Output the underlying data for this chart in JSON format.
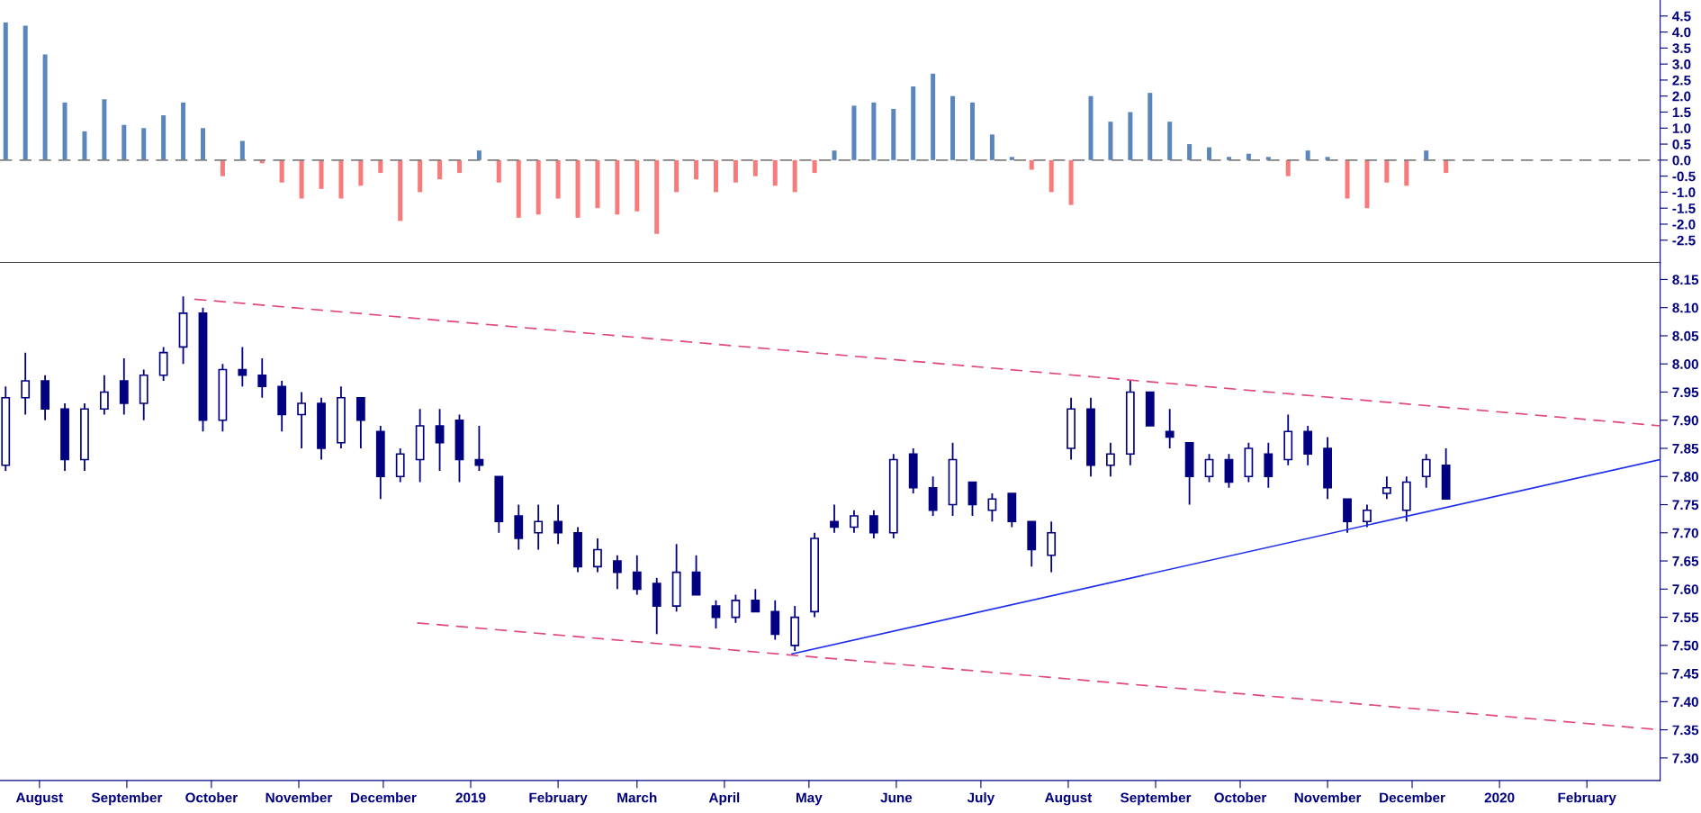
{
  "chart_data": [
    {
      "type": "bar",
      "x": [
        "2018-07-20",
        "2018-07-27",
        "2018-08-03",
        "2018-08-10",
        "2018-08-17",
        "2018-08-24",
        "2018-08-31",
        "2018-09-07",
        "2018-09-14",
        "2018-09-21",
        "2018-09-28",
        "2018-10-05",
        "2018-10-12",
        "2018-10-19",
        "2018-10-26",
        "2018-11-02",
        "2018-11-09",
        "2018-11-16",
        "2018-11-23",
        "2018-11-30",
        "2018-12-07",
        "2018-12-14",
        "2018-12-21",
        "2018-12-28",
        "2019-01-04",
        "2019-01-11",
        "2019-01-18",
        "2019-01-25",
        "2019-02-01",
        "2019-02-08",
        "2019-02-15",
        "2019-02-22",
        "2019-03-01",
        "2019-03-08",
        "2019-03-15",
        "2019-03-22",
        "2019-03-29",
        "2019-04-05",
        "2019-04-12",
        "2019-04-19",
        "2019-04-26",
        "2019-05-03",
        "2019-05-10",
        "2019-05-17",
        "2019-05-24",
        "2019-05-31",
        "2019-06-07",
        "2019-06-14",
        "2019-06-21",
        "2019-06-28",
        "2019-07-05",
        "2019-07-12",
        "2019-07-19",
        "2019-07-26",
        "2019-08-02",
        "2019-08-09",
        "2019-08-16",
        "2019-08-23",
        "2019-08-30",
        "2019-09-06",
        "2019-09-13",
        "2019-09-20",
        "2019-09-27",
        "2019-10-04",
        "2019-10-11",
        "2019-10-18",
        "2019-10-25",
        "2019-11-01",
        "2019-11-08",
        "2019-11-15",
        "2019-11-22",
        "2019-11-29",
        "2019-12-06",
        "2019-12-13"
      ],
      "series": [
        {
          "color": "#5b86bd",
          "values": [
            4.3,
            4.2,
            3.3,
            1.8,
            0.9,
            1.9,
            1.1,
            1.0,
            1.4,
            1.8,
            1.0,
            null,
            0.6,
            null,
            null,
            null,
            null,
            null,
            null,
            null,
            null,
            null,
            null,
            null,
            0.3,
            null,
            null,
            null,
            null,
            null,
            null,
            null,
            null,
            null,
            null,
            null,
            null,
            null,
            null,
            null,
            null,
            null,
            0.3,
            1.7,
            1.8,
            1.6,
            2.3,
            2.7,
            2.0,
            1.8,
            0.8,
            0.1,
            null,
            null,
            null,
            2.0,
            1.2,
            1.5,
            2.1,
            1.2,
            0.5,
            0.4,
            0.1,
            0.2,
            0.1,
            null,
            0.3,
            0.1,
            null,
            null,
            null,
            null,
            0.3,
            null
          ]
        },
        {
          "color": "#f77b7b",
          "values": [
            null,
            null,
            null,
            null,
            null,
            null,
            null,
            null,
            null,
            null,
            null,
            -0.5,
            null,
            -0.1,
            -0.7,
            -1.2,
            -0.9,
            -1.2,
            -0.8,
            -0.4,
            -1.9,
            -1.0,
            -0.6,
            -0.4,
            null,
            -0.7,
            -1.8,
            -1.7,
            -1.2,
            -1.8,
            -1.5,
            -1.7,
            -1.6,
            -2.3,
            -1.0,
            -0.6,
            -1.0,
            -0.7,
            -0.5,
            -0.8,
            -1.0,
            -0.4,
            null,
            null,
            null,
            null,
            null,
            null,
            null,
            null,
            null,
            null,
            -0.3,
            -1.0,
            -1.4,
            null,
            null,
            null,
            null,
            null,
            null,
            null,
            null,
            null,
            null,
            -0.5,
            null,
            null,
            -1.2,
            -1.5,
            -0.7,
            -0.8,
            null,
            -0.4
          ]
        }
      ],
      "xlim": [
        "2018-07-18",
        "2020-02-27"
      ],
      "ylim": [
        -3.2,
        5.0
      ],
      "yticks": [
        -2.5,
        {
          "value": -2,
          "label": "-2.0"
        },
        -1.5,
        {
          "value": -1,
          "label": "-1.0"
        },
        -0.5,
        {
          "value": 0,
          "label": "0.0"
        },
        0.5,
        {
          "value": 1,
          "label": "1.0"
        },
        1.5,
        {
          "value": 2,
          "label": "2.0"
        },
        2.5,
        {
          "value": 3,
          "label": "3.0"
        },
        3.5,
        {
          "value": 4,
          "label": "4.0"
        },
        4.5
      ],
      "ref_lines": [
        {
          "axis": "y",
          "value": 0,
          "color": "#808080",
          "line_style": "dashed"
        }
      ],
      "tick_labels": "y"
    },
    {
      "type": "candlestick",
      "color": "#000080",
      "x": [
        "2018-07-20",
        "2018-07-27",
        "2018-08-03",
        "2018-08-10",
        "2018-08-17",
        "2018-08-24",
        "2018-08-31",
        "2018-09-07",
        "2018-09-14",
        "2018-09-21",
        "2018-09-28",
        "2018-10-05",
        "2018-10-12",
        "2018-10-19",
        "2018-10-26",
        "2018-11-02",
        "2018-11-09",
        "2018-11-16",
        "2018-11-23",
        "2018-11-30",
        "2018-12-07",
        "2018-12-14",
        "2018-12-21",
        "2018-12-28",
        "2019-01-04",
        "2019-01-11",
        "2019-01-18",
        "2019-01-25",
        "2019-02-01",
        "2019-02-08",
        "2019-02-15",
        "2019-02-22",
        "2019-03-01",
        "2019-03-08",
        "2019-03-15",
        "2019-03-22",
        "2019-03-29",
        "2019-04-05",
        "2019-04-12",
        "2019-04-19",
        "2019-04-26",
        "2019-05-03",
        "2019-05-10",
        "2019-05-17",
        "2019-05-24",
        "2019-05-31",
        "2019-06-07",
        "2019-06-14",
        "2019-06-21",
        "2019-06-28",
        "2019-07-05",
        "2019-07-12",
        "2019-07-19",
        "2019-07-26",
        "2019-08-02",
        "2019-08-09",
        "2019-08-16",
        "2019-08-23",
        "2019-08-30",
        "2019-09-06",
        "2019-09-13",
        "2019-09-20",
        "2019-09-27",
        "2019-10-04",
        "2019-10-11",
        "2019-10-18",
        "2019-10-25",
        "2019-11-01",
        "2019-11-08",
        "2019-11-15",
        "2019-11-22",
        "2019-11-29",
        "2019-12-06",
        "2019-12-13"
      ],
      "ohlc": [
        [
          7.82,
          7.96,
          7.81,
          7.94
        ],
        [
          7.94,
          8.02,
          7.91,
          7.97
        ],
        [
          7.97,
          7.98,
          7.9,
          7.92
        ],
        [
          7.92,
          7.93,
          7.81,
          7.83
        ],
        [
          7.83,
          7.93,
          7.81,
          7.92
        ],
        [
          7.92,
          7.98,
          7.91,
          7.95
        ],
        [
          7.97,
          8.01,
          7.91,
          7.93
        ],
        [
          7.93,
          7.99,
          7.9,
          7.98
        ],
        [
          7.98,
          8.03,
          7.97,
          8.02
        ],
        [
          8.03,
          8.12,
          8.0,
          8.09
        ],
        [
          8.09,
          8.1,
          7.88,
          7.9
        ],
        [
          7.9,
          8.0,
          7.88,
          7.99
        ],
        [
          7.99,
          8.03,
          7.96,
          7.98
        ],
        [
          7.98,
          8.01,
          7.94,
          7.96
        ],
        [
          7.96,
          7.97,
          7.88,
          7.91
        ],
        [
          7.91,
          7.95,
          7.85,
          7.93
        ],
        [
          7.93,
          7.94,
          7.83,
          7.85
        ],
        [
          7.86,
          7.96,
          7.85,
          7.94
        ],
        [
          7.94,
          7.94,
          7.85,
          7.9
        ],
        [
          7.88,
          7.89,
          7.76,
          7.8
        ],
        [
          7.8,
          7.85,
          7.79,
          7.84
        ],
        [
          7.83,
          7.92,
          7.79,
          7.89
        ],
        [
          7.89,
          7.92,
          7.81,
          7.86
        ],
        [
          7.9,
          7.91,
          7.79,
          7.83
        ],
        [
          7.83,
          7.89,
          7.81,
          7.82
        ],
        [
          7.8,
          7.8,
          7.7,
          7.72
        ],
        [
          7.73,
          7.75,
          7.67,
          7.69
        ],
        [
          7.7,
          7.75,
          7.67,
          7.72
        ],
        [
          7.72,
          7.75,
          7.68,
          7.7
        ],
        [
          7.7,
          7.71,
          7.63,
          7.64
        ],
        [
          7.64,
          7.69,
          7.63,
          7.67
        ],
        [
          7.65,
          7.66,
          7.6,
          7.63
        ],
        [
          7.63,
          7.66,
          7.59,
          7.6
        ],
        [
          7.61,
          7.62,
          7.52,
          7.57
        ],
        [
          7.57,
          7.68,
          7.56,
          7.63
        ],
        [
          7.63,
          7.66,
          7.59,
          7.59
        ],
        [
          7.57,
          7.58,
          7.53,
          7.55
        ],
        [
          7.55,
          7.59,
          7.54,
          7.58
        ],
        [
          7.58,
          7.6,
          7.56,
          7.56
        ],
        [
          7.56,
          7.58,
          7.51,
          7.52
        ],
        [
          7.5,
          7.57,
          7.49,
          7.55
        ],
        [
          7.56,
          7.7,
          7.55,
          7.69
        ],
        [
          7.72,
          7.75,
          7.7,
          7.71
        ],
        [
          7.71,
          7.74,
          7.7,
          7.73
        ],
        [
          7.73,
          7.74,
          7.69,
          7.7
        ],
        [
          7.7,
          7.84,
          7.69,
          7.83
        ],
        [
          7.84,
          7.85,
          7.77,
          7.78
        ],
        [
          7.78,
          7.8,
          7.73,
          7.74
        ],
        [
          7.75,
          7.86,
          7.73,
          7.83
        ],
        [
          7.79,
          7.79,
          7.73,
          7.75
        ],
        [
          7.74,
          7.77,
          7.72,
          7.76
        ],
        [
          7.77,
          7.77,
          7.71,
          7.72
        ],
        [
          7.72,
          7.72,
          7.64,
          7.67
        ],
        [
          7.66,
          7.72,
          7.63,
          7.7
        ],
        [
          7.85,
          7.94,
          7.83,
          7.92
        ],
        [
          7.92,
          7.94,
          7.8,
          7.82
        ],
        [
          7.82,
          7.86,
          7.8,
          7.84
        ],
        [
          7.84,
          7.97,
          7.82,
          7.95
        ],
        [
          7.95,
          7.95,
          7.89,
          7.89
        ],
        [
          7.88,
          7.92,
          7.85,
          7.87
        ],
        [
          7.86,
          7.86,
          7.75,
          7.8
        ],
        [
          7.8,
          7.84,
          7.79,
          7.83
        ],
        [
          7.83,
          7.84,
          7.78,
          7.79
        ],
        [
          7.8,
          7.86,
          7.79,
          7.85
        ],
        [
          7.84,
          7.86,
          7.78,
          7.8
        ],
        [
          7.83,
          7.91,
          7.82,
          7.88
        ],
        [
          7.88,
          7.89,
          7.82,
          7.84
        ],
        [
          7.85,
          7.87,
          7.76,
          7.78
        ],
        [
          7.76,
          7.76,
          7.7,
          7.72
        ],
        [
          7.72,
          7.75,
          7.71,
          7.74
        ],
        [
          7.77,
          7.8,
          7.76,
          7.78
        ],
        [
          7.74,
          7.8,
          7.72,
          7.79
        ],
        [
          7.8,
          7.84,
          7.78,
          7.83
        ],
        [
          7.82,
          7.85,
          7.76,
          7.76
        ]
      ],
      "series": [
        {
          "type": "line",
          "x": [
            "2018-09-25",
            "2020-02-27"
          ],
          "values": [
            8.115,
            7.89
          ],
          "color": "#e0487a",
          "line_style": "dashed"
        },
        {
          "type": "line",
          "x": [
            "2018-12-13",
            "2020-02-27"
          ],
          "values": [
            7.54,
            7.35
          ],
          "color": "#e0487a",
          "line_style": "dashed"
        },
        {
          "type": "line",
          "x": [
            "2019-04-25",
            "2020-02-27"
          ],
          "values": [
            7.485,
            7.83
          ],
          "color": "#1f2ff0",
          "line_style": "solid"
        }
      ],
      "xlim": [
        "2018-07-18",
        "2020-02-27"
      ],
      "xticks": [
        {
          "value": "2018-08-01",
          "label": "August"
        },
        {
          "value": "2018-09-01",
          "label": "September"
        },
        {
          "value": "2018-10-01",
          "label": "October"
        },
        {
          "value": "2018-11-01",
          "label": "November"
        },
        {
          "value": "2018-12-01",
          "label": "December"
        },
        {
          "value": "2019-01-01",
          "label": "2019"
        },
        {
          "value": "2019-02-01",
          "label": "February"
        },
        {
          "value": "2019-03-01",
          "label": "March"
        },
        {
          "value": "2019-04-01",
          "label": "April"
        },
        {
          "value": "2019-05-01",
          "label": "May"
        },
        {
          "value": "2019-06-01",
          "label": "June"
        },
        {
          "value": "2019-07-01",
          "label": "July"
        },
        {
          "value": "2019-08-01",
          "label": "August"
        },
        {
          "value": "2019-09-01",
          "label": "September"
        },
        {
          "value": "2019-10-01",
          "label": "October"
        },
        {
          "value": "2019-11-01",
          "label": "November"
        },
        {
          "value": "2019-12-01",
          "label": "December"
        },
        {
          "value": "2020-01-01",
          "label": "2020"
        },
        {
          "value": "2020-02-01",
          "label": "February"
        }
      ],
      "ylim": [
        7.26,
        8.18
      ],
      "yticks": [
        {
          "value": 7.3,
          "label": "7.30"
        },
        {
          "value": 7.35,
          "label": "7.35"
        },
        {
          "value": 7.4,
          "label": "7.40"
        },
        {
          "value": 7.45,
          "label": "7.45"
        },
        {
          "value": 7.5,
          "label": "7.50"
        },
        {
          "value": 7.55,
          "label": "7.55"
        },
        {
          "value": 7.6,
          "label": "7.60"
        },
        {
          "value": 7.65,
          "label": "7.65"
        },
        {
          "value": 7.7,
          "label": "7.70"
        },
        {
          "value": 7.75,
          "label": "7.75"
        },
        {
          "value": 7.8,
          "label": "7.80"
        },
        {
          "value": 7.85,
          "label": "7.85"
        },
        {
          "value": 7.9,
          "label": "7.90"
        },
        {
          "value": 7.95,
          "label": "7.95"
        },
        {
          "value": 8.0,
          "label": "8.00"
        },
        {
          "value": 8.05,
          "label": "8.05"
        },
        {
          "value": 8.1,
          "label": "8.10"
        },
        {
          "value": 8.15,
          "label": "8.15"
        }
      ]
    }
  ]
}
